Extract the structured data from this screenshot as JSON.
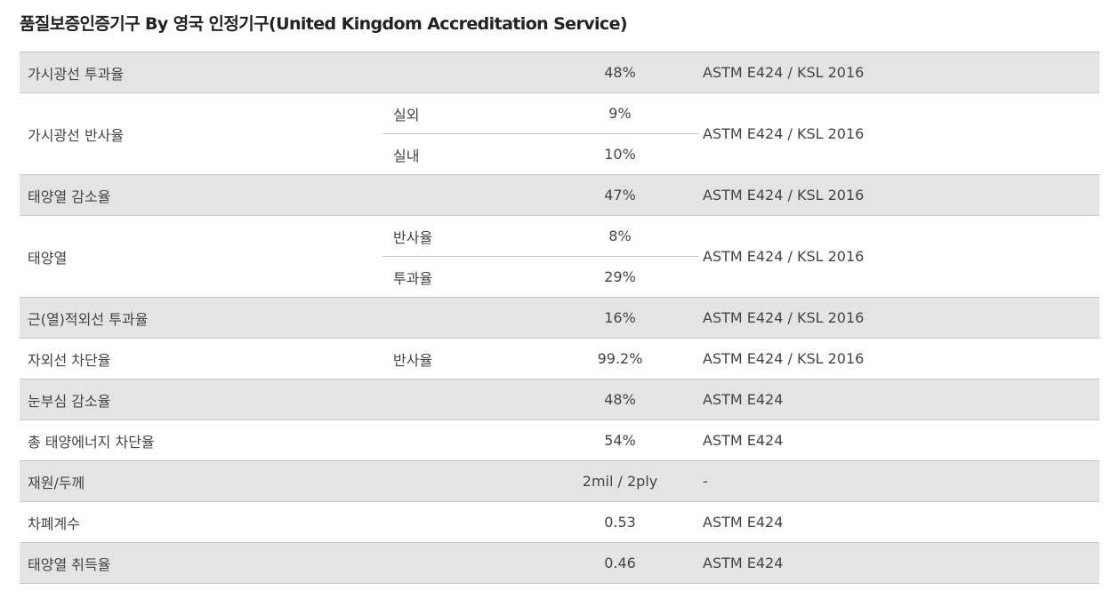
{
  "title": "품질보증인증기구 By 영국 인정기구(United Kingdom Accreditation Service)",
  "rows": [
    {
      "name": "가시광선 투과율",
      "sub": "",
      "value": "48%",
      "standard": "ASTM E424 / KSL 2016"
    },
    {
      "name": "가시광선 반사율",
      "subs": [
        {
          "sub": "실외",
          "value": "9%"
        },
        {
          "sub": "실내",
          "value": "10%"
        }
      ],
      "standard": "ASTM E424 / KSL 2016"
    },
    {
      "name": "태양열 감소율",
      "sub": "",
      "value": "47%",
      "standard": "ASTM E424 / KSL 2016"
    },
    {
      "name": "태양열",
      "subs": [
        {
          "sub": "반사율",
          "value": "8%"
        },
        {
          "sub": "투과율",
          "value": "29%"
        }
      ],
      "standard": "ASTM E424 / KSL 2016"
    },
    {
      "name": "근(열)적외선 투과율",
      "sub": "",
      "value": "16%",
      "standard": "ASTM E424 / KSL 2016"
    },
    {
      "name": "자외선 차단율",
      "sub": "반사율",
      "value": "99.2%",
      "standard": "ASTM E424 / KSL 2016"
    },
    {
      "name": "눈부심 감소율",
      "sub": "",
      "value": "48%",
      "standard": "ASTM E424"
    },
    {
      "name": "총 태양에너지 차단율",
      "sub": "",
      "value": "54%",
      "standard": "ASTM E424"
    },
    {
      "name": "재원/두께",
      "sub": "",
      "value": "2mil / 2ply",
      "standard": "-"
    },
    {
      "name": "차폐계수",
      "sub": "",
      "value": "0.53",
      "standard": "ASTM E424"
    },
    {
      "name": "태양열 취득율",
      "sub": "",
      "value": "0.46",
      "standard": "ASTM E424"
    }
  ]
}
